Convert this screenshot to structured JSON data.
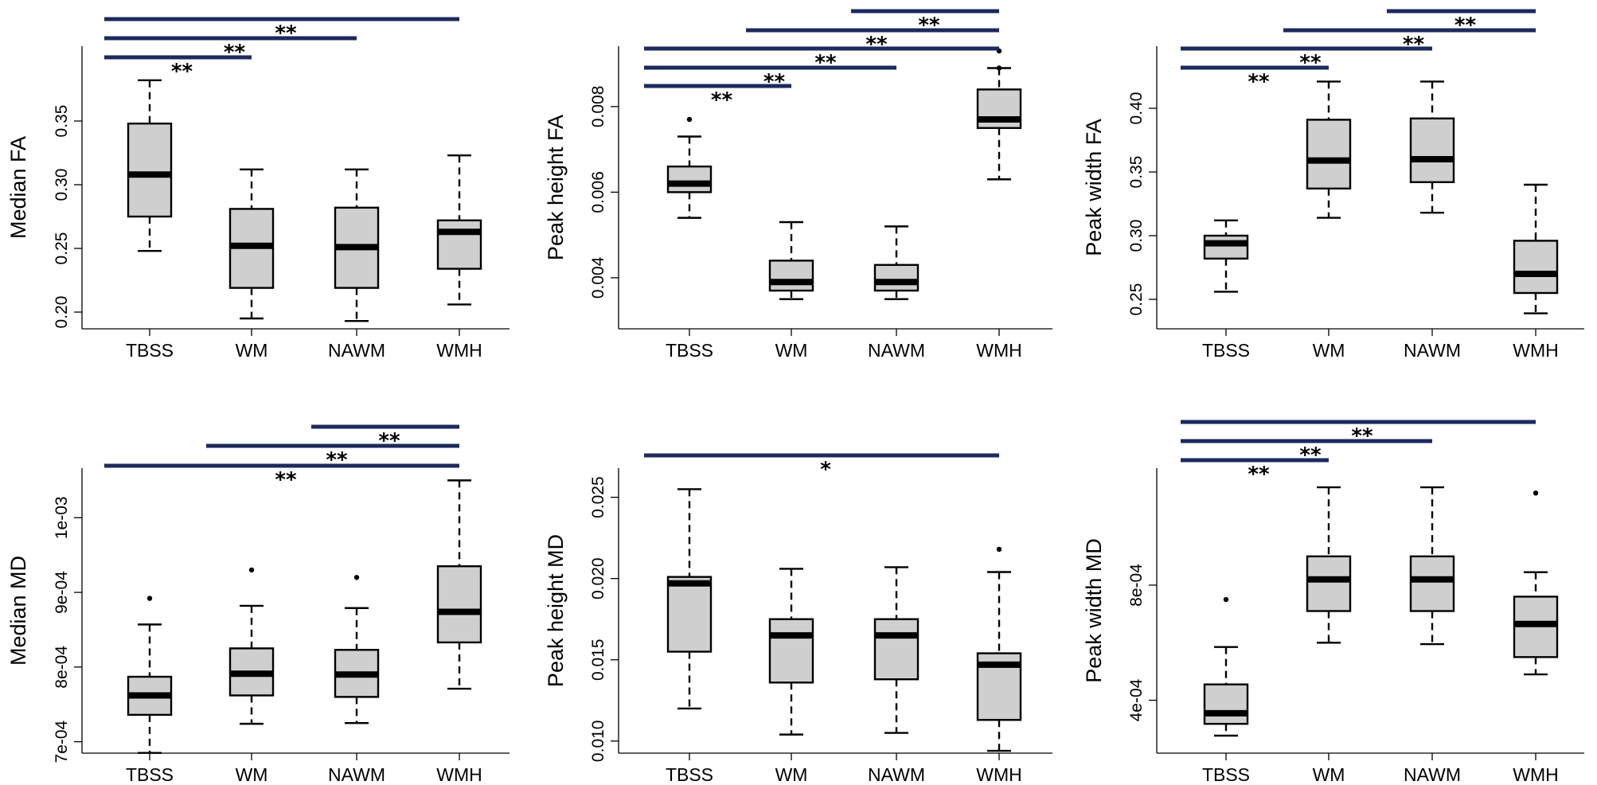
{
  "chart_data": [
    {
      "type": "boxplot",
      "ylabel": "Median FA",
      "categories": [
        "TBSS",
        "WM",
        "NAWM",
        "WMH"
      ],
      "ylim": [
        0.19,
        0.405
      ],
      "yticks": [
        0.2,
        0.25,
        0.3,
        0.35
      ],
      "yticklabels": [
        "0.20",
        "0.25",
        "0.30",
        "0.35"
      ],
      "boxes": [
        {
          "min": 0.248,
          "q1": 0.275,
          "median": 0.308,
          "q3": 0.348,
          "max": 0.382,
          "outliers": []
        },
        {
          "min": 0.195,
          "q1": 0.219,
          "median": 0.252,
          "q3": 0.281,
          "max": 0.312,
          "outliers": []
        },
        {
          "min": 0.193,
          "q1": 0.219,
          "median": 0.251,
          "q3": 0.282,
          "max": 0.312,
          "outliers": []
        },
        {
          "min": 0.206,
          "q1": 0.234,
          "median": 0.263,
          "q3": 0.272,
          "max": 0.323,
          "outliers": []
        }
      ],
      "significance": [
        {
          "from": 0,
          "to": 3,
          "label": "**"
        },
        {
          "from": 0,
          "to": 2,
          "label": "**"
        },
        {
          "from": 0,
          "to": 1,
          "label": "**"
        }
      ]
    },
    {
      "type": "boxplot",
      "ylabel": "Peak height FA",
      "categories": [
        "TBSS",
        "WM",
        "NAWM",
        "WMH"
      ],
      "ylim": [
        0.0029,
        0.0093
      ],
      "yticks": [
        0.004,
        0.006,
        0.008
      ],
      "yticklabels": [
        "0.004",
        "0.006",
        "0.008"
      ],
      "boxes": [
        {
          "min": 0.0054,
          "q1": 0.006,
          "median": 0.0062,
          "q3": 0.0066,
          "max": 0.0073,
          "outliers": [
            0.0077
          ]
        },
        {
          "min": 0.0035,
          "q1": 0.0037,
          "median": 0.0039,
          "q3": 0.0044,
          "max": 0.0053,
          "outliers": []
        },
        {
          "min": 0.0035,
          "q1": 0.0037,
          "median": 0.0039,
          "q3": 0.0043,
          "max": 0.0052,
          "outliers": []
        },
        {
          "min": 0.0063,
          "q1": 0.0075,
          "median": 0.0077,
          "q3": 0.0084,
          "max": 0.0089,
          "outliers": [
            0.0089,
            0.0093
          ]
        }
      ],
      "significance": [
        {
          "from": 2,
          "to": 3,
          "label": "**"
        },
        {
          "from": 1,
          "to": 3,
          "label": "**"
        },
        {
          "from": 0,
          "to": 3,
          "label": "**"
        },
        {
          "from": 0,
          "to": 2,
          "label": "**"
        },
        {
          "from": 0,
          "to": 1,
          "label": "**"
        }
      ]
    },
    {
      "type": "boxplot",
      "ylabel": "Peak width FA",
      "categories": [
        "TBSS",
        "WM",
        "NAWM",
        "WMH"
      ],
      "ylim": [
        0.23,
        0.445
      ],
      "yticks": [
        0.25,
        0.3,
        0.35,
        0.4
      ],
      "yticklabels": [
        "0.25",
        "0.30",
        "0.35",
        "0.40"
      ],
      "boxes": [
        {
          "min": 0.256,
          "q1": 0.282,
          "median": 0.294,
          "q3": 0.3,
          "max": 0.312,
          "outliers": []
        },
        {
          "min": 0.314,
          "q1": 0.337,
          "median": 0.359,
          "q3": 0.391,
          "max": 0.421,
          "outliers": []
        },
        {
          "min": 0.318,
          "q1": 0.342,
          "median": 0.36,
          "q3": 0.392,
          "max": 0.421,
          "outliers": []
        },
        {
          "min": 0.239,
          "q1": 0.255,
          "median": 0.27,
          "q3": 0.296,
          "max": 0.34,
          "outliers": []
        }
      ],
      "significance": [
        {
          "from": 2,
          "to": 3,
          "label": "**"
        },
        {
          "from": 1,
          "to": 3,
          "label": "**"
        },
        {
          "from": 0,
          "to": 2,
          "label": "**"
        },
        {
          "from": 0,
          "to": 1,
          "label": "**"
        }
      ]
    },
    {
      "type": "boxplot",
      "ylabel": "Median MD",
      "categories": [
        "TBSS",
        "WM",
        "NAWM",
        "WMH"
      ],
      "ylim": [
        0.00069,
        0.00106
      ],
      "yticks": [
        0.0007,
        0.0008,
        0.0009,
        0.001
      ],
      "yticklabels": [
        "7e-04",
        "8e-04",
        "9e-04",
        "1e-03"
      ],
      "boxes": [
        {
          "min": 0.000685,
          "q1": 0.000736,
          "median": 0.000762,
          "q3": 0.000787,
          "max": 0.000857,
          "outliers": [
            0.000892
          ]
        },
        {
          "min": 0.000724,
          "q1": 0.000762,
          "median": 0.000791,
          "q3": 0.000825,
          "max": 0.000882,
          "outliers": [
            0.00093
          ]
        },
        {
          "min": 0.000725,
          "q1": 0.00076,
          "median": 0.00079,
          "q3": 0.000823,
          "max": 0.000879,
          "outliers": [
            0.00092
          ]
        },
        {
          "min": 0.000771,
          "q1": 0.000833,
          "median": 0.000874,
          "q3": 0.000935,
          "max": 0.00105,
          "outliers": []
        }
      ],
      "significance": [
        {
          "from": 2,
          "to": 3,
          "label": "**"
        },
        {
          "from": 1,
          "to": 3,
          "label": "**"
        },
        {
          "from": 0,
          "to": 3,
          "label": "**"
        }
      ]
    },
    {
      "type": "boxplot",
      "ylabel": "Peak height MD",
      "categories": [
        "TBSS",
        "WM",
        "NAWM",
        "WMH"
      ],
      "ylim": [
        0.0095,
        0.0265
      ],
      "yticks": [
        0.01,
        0.015,
        0.02,
        0.025
      ],
      "yticklabels": [
        "0.010",
        "0.015",
        "0.020",
        "0.025"
      ],
      "boxes": [
        {
          "min": 0.012,
          "q1": 0.0155,
          "median": 0.0197,
          "q3": 0.0201,
          "max": 0.0255,
          "outliers": []
        },
        {
          "min": 0.0104,
          "q1": 0.0136,
          "median": 0.0165,
          "q3": 0.0175,
          "max": 0.0206,
          "outliers": []
        },
        {
          "min": 0.0105,
          "q1": 0.0138,
          "median": 0.0165,
          "q3": 0.0175,
          "max": 0.0207,
          "outliers": []
        },
        {
          "min": 0.0094,
          "q1": 0.0113,
          "median": 0.0147,
          "q3": 0.0154,
          "max": 0.0204,
          "outliers": [
            0.0218
          ]
        }
      ],
      "significance": [
        {
          "from": 0,
          "to": 3,
          "label": "*"
        }
      ]
    },
    {
      "type": "boxplot",
      "ylabel": "Peak width MD",
      "categories": [
        "TBSS",
        "WM",
        "NAWM",
        "WMH"
      ],
      "ylim": [
        0.00023,
        0.00119
      ],
      "yticks": [
        0.0004,
        0.0008
      ],
      "yticklabels": [
        "4e-04",
        "8e-04"
      ],
      "boxes": [
        {
          "min": 0.000277,
          "q1": 0.000318,
          "median": 0.000355,
          "q3": 0.000455,
          "max": 0.000585,
          "outliers": [
            0.00075
          ]
        },
        {
          "min": 0.0006,
          "q1": 0.00071,
          "median": 0.00082,
          "q3": 0.0009,
          "max": 0.00114,
          "outliers": []
        },
        {
          "min": 0.000595,
          "q1": 0.00071,
          "median": 0.00082,
          "q3": 0.0009,
          "max": 0.00114,
          "outliers": []
        },
        {
          "min": 0.00049,
          "q1": 0.00055,
          "median": 0.000665,
          "q3": 0.00076,
          "max": 0.000845,
          "outliers": [
            0.00112
          ]
        }
      ],
      "significance": [
        {
          "from": 0,
          "to": 3,
          "label": "**"
        },
        {
          "from": 0,
          "to": 2,
          "label": "**"
        },
        {
          "from": 0,
          "to": 1,
          "label": "**"
        }
      ]
    }
  ]
}
